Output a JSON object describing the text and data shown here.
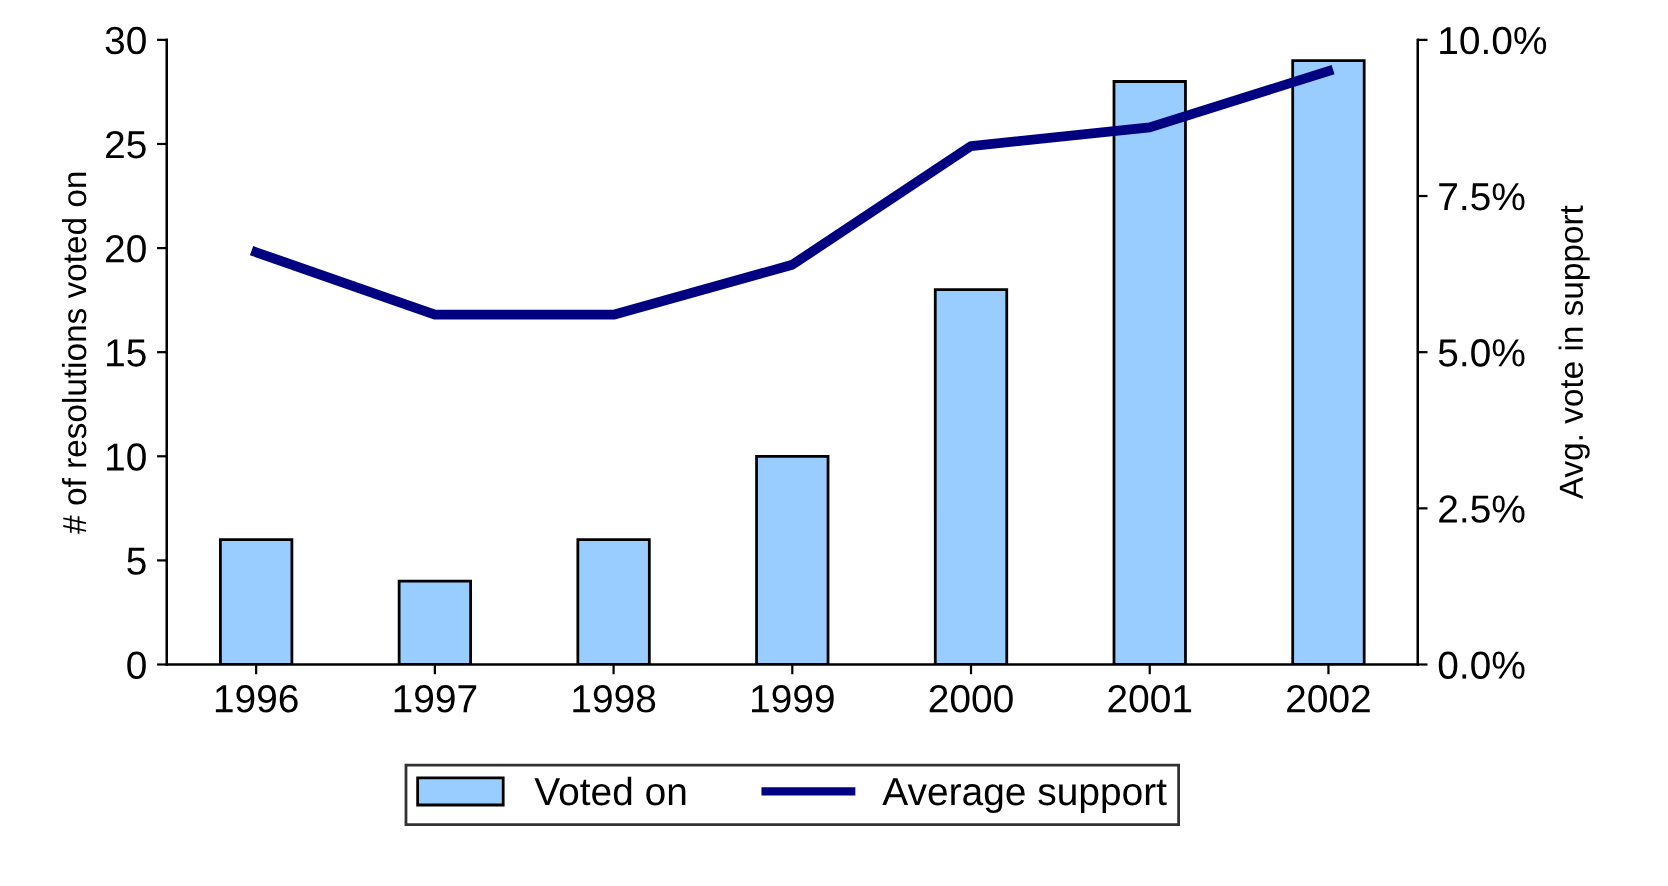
{
  "chart_data": {
    "type": "bar",
    "categories": [
      "1996",
      "1997",
      "1998",
      "1999",
      "2000",
      "2001",
      "2002"
    ],
    "series": [
      {
        "name": "Voted on",
        "color": "#99ccff",
        "values": [
          6,
          4,
          6,
          10,
          18,
          28,
          29
        ]
      },
      {
        "name": "Average support",
        "type": "line",
        "axis": "y2",
        "color": "#000080",
        "values": [
          6.6,
          5.6,
          5.6,
          6.4,
          8.3,
          8.6,
          9.5
        ]
      }
    ],
    "ylabel": "# of resolutions voted on",
    "y2label": "Avg. vote in support",
    "ylim": [
      0,
      30
    ],
    "yticks": [
      0,
      5,
      10,
      15,
      20,
      25,
      30
    ],
    "y2lim": [
      0,
      10
    ],
    "y2ticks": [
      {
        "value": 0,
        "label": "0.0%"
      },
      {
        "value": 2.5,
        "label": "2.5%"
      },
      {
        "value": 5,
        "label": "5.0%"
      },
      {
        "value": 7.5,
        "label": "7.5%"
      },
      {
        "value": 10,
        "label": "10.0%"
      }
    ],
    "legend": "bottom",
    "grid": false,
    "line_style": "solid",
    "marker": "none"
  }
}
